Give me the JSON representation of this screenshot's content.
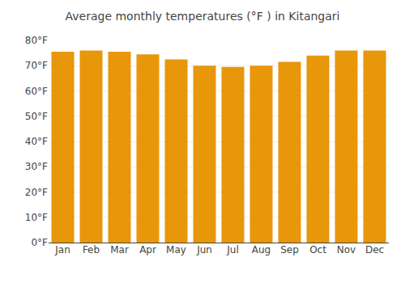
{
  "chart_data": {
    "type": "bar",
    "title": "Average monthly temperatures (°F ) in Kitangari",
    "categories": [
      "Jan",
      "Feb",
      "Mar",
      "Apr",
      "May",
      "Jun",
      "Jul",
      "Aug",
      "Sep",
      "Oct",
      "Nov",
      "Dec"
    ],
    "values": [
      75.5,
      76.0,
      75.5,
      74.5,
      72.5,
      70.0,
      69.5,
      70.0,
      71.5,
      74.0,
      76.0,
      76.0
    ],
    "color": "#E8960A",
    "ylim": [
      0,
      80
    ],
    "yticks": [
      {
        "value": 0,
        "label": "0°F"
      },
      {
        "value": 10,
        "label": "10°F"
      },
      {
        "value": 20,
        "label": "20°F"
      },
      {
        "value": 30,
        "label": "30°F"
      },
      {
        "value": 40,
        "label": "40°F"
      },
      {
        "value": 50,
        "label": "50°F"
      },
      {
        "value": 60,
        "label": "60°F"
      },
      {
        "value": 70,
        "label": "70°F"
      },
      {
        "value": 80,
        "label": "80°F"
      }
    ],
    "grid": true
  }
}
